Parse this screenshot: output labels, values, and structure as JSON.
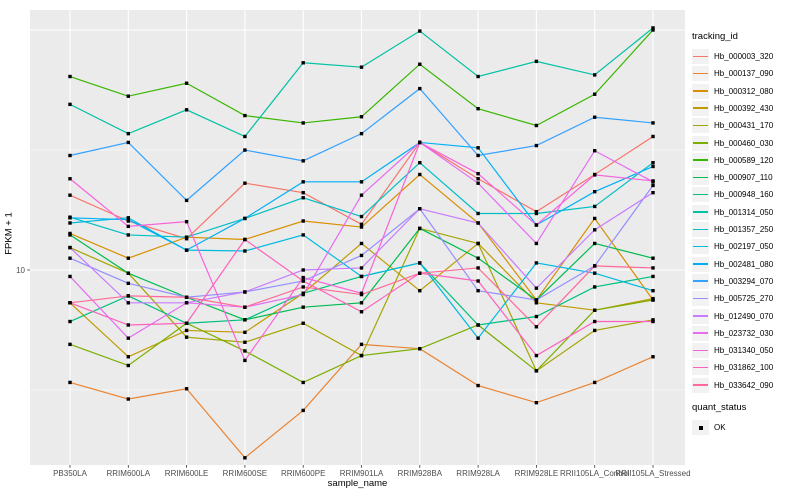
{
  "figure": {
    "y_axis": {
      "title": "FPKM + 1",
      "scale": "log10",
      "tick_labels": [
        "10"
      ]
    },
    "x_axis": {
      "title": "sample_name"
    },
    "legend": {
      "tracking_title": "tracking_id",
      "quant_title": "quant_status",
      "quant_items": [
        {
          "label": "OK",
          "marker": "black-square"
        }
      ]
    },
    "colors": {
      "panel_background": "#EBEBEB",
      "gridline": "#FFFFFF",
      "tick_mark": "#333333",
      "tick_label": "#4D4D4D",
      "point": "#000000"
    }
  },
  "chart_data": {
    "type": "line",
    "title": "",
    "xlabel": "sample_name",
    "ylabel": "FPKM + 1",
    "yscale": "log10",
    "ylim": [
      1.5,
      121
    ],
    "y_major_breaks": [
      10,
      100
    ],
    "y_minor_breaks": [
      3.162,
      31.62
    ],
    "grid": true,
    "legend_position": "right",
    "point_marker": "black-square",
    "x_categories": [
      "PB350LA",
      "RRIM600LA",
      "RRIM600LE",
      "RRIM600SE",
      "RRIM600PE",
      "RRIM901LA",
      "RRIM928BA",
      "RRIM928LA",
      "RRIM928LE",
      "RRII105LA_Control",
      "RRII105LA_Stressed"
    ],
    "series": [
      {
        "name": "Hb_000003_320",
        "color": "#F8766D",
        "values": [
          20.5,
          16,
          13.5,
          23,
          21,
          15.5,
          34,
          24,
          17.5,
          25,
          36
        ]
      },
      {
        "name": "Hb_000137_090",
        "color": "#EA8331",
        "values": [
          3.4,
          2.9,
          3.2,
          1.65,
          2.6,
          4.9,
          4.7,
          3.3,
          2.8,
          3.4,
          4.35
        ]
      },
      {
        "name": "Hb_000312_080",
        "color": "#D89000",
        "values": [
          14.2,
          11.2,
          13.7,
          13.4,
          16,
          15.1,
          25,
          15.7,
          7.5,
          16.4,
          7.5
        ]
      },
      {
        "name": "Hb_000392_430",
        "color": "#C09B00",
        "values": [
          7.3,
          4.35,
          5.6,
          5.5,
          8,
          12.9,
          8.2,
          12.9,
          7.3,
          6.8,
          7.6
        ]
      },
      {
        "name": "Hb_000431_170",
        "color": "#A3A500",
        "values": [
          12.4,
          9.7,
          5.25,
          5.0,
          6,
          4.4,
          14.9,
          12.9,
          3.8,
          5.6,
          6.2
        ]
      },
      {
        "name": "Hb_000460_030",
        "color": "#7CAE00",
        "values": [
          4.9,
          4.0,
          6.0,
          4.6,
          3.4,
          4.4,
          4.7,
          5.9,
          3.8,
          6.8,
          7.5
        ]
      },
      {
        "name": "Hb_000589_120",
        "color": "#39B600",
        "values": [
          64,
          53,
          60,
          44,
          41,
          43.5,
          72,
          47,
          40,
          54,
          100
        ]
      },
      {
        "name": "Hb_000907_110",
        "color": "#00BB4E",
        "values": [
          14,
          9.7,
          7.7,
          6.2,
          7,
          7.3,
          14.9,
          11.2,
          7.5,
          12.9,
          11.2
        ]
      },
      {
        "name": "Hb_000948_160",
        "color": "#00BF7D",
        "values": [
          6.1,
          7.8,
          6.0,
          6.2,
          8,
          9.4,
          10.7,
          5.9,
          6.4,
          8.5,
          9.4
        ]
      },
      {
        "name": "Hb_001314_050",
        "color": "#00C1A3",
        "values": [
          49,
          37,
          46.5,
          36,
          73,
          70,
          99,
          64,
          74,
          65,
          102
        ]
      },
      {
        "name": "Hb_001357_250",
        "color": "#00BFC4",
        "values": [
          16.6,
          14,
          13.7,
          16.4,
          20,
          16.7,
          28,
          17.2,
          17.2,
          18.4,
          28
        ]
      },
      {
        "name": "Hb_002197_050",
        "color": "#00BAE0",
        "values": [
          15.7,
          16.5,
          12.1,
          12,
          14,
          9.4,
          10.7,
          5.2,
          10.7,
          9.7,
          8.2
        ]
      },
      {
        "name": "Hb_002481_080",
        "color": "#00B0F6",
        "values": [
          16.5,
          16.2,
          12.1,
          16.4,
          23.3,
          23.3,
          34,
          32.3,
          15.4,
          21.2,
          27
        ]
      },
      {
        "name": "Hb_003294_070",
        "color": "#35A2FF",
        "values": [
          30,
          34,
          19.5,
          31.6,
          28.5,
          37,
          57,
          30,
          33,
          43.3,
          41
        ]
      },
      {
        "name": "Hb_005725_270",
        "color": "#9590FF",
        "values": [
          11.2,
          8.8,
          7.7,
          8.1,
          9,
          11.5,
          18,
          8.2,
          7.5,
          10.4,
          22.5
        ]
      },
      {
        "name": "Hb_012490_070",
        "color": "#C77CFF",
        "values": [
          12.4,
          7.3,
          7.3,
          8.1,
          10,
          10.2,
          18,
          15.7,
          8.4,
          14.7,
          21
        ]
      },
      {
        "name": "Hb_023732_030",
        "color": "#E76BF3",
        "values": [
          9.4,
          5.2,
          7.3,
          7.0,
          7.9,
          20.5,
          34,
          23,
          12.9,
          31.4,
          23.3
        ]
      },
      {
        "name": "Hb_031340_050",
        "color": "#FA62DB",
        "values": [
          24,
          15.2,
          15.9,
          4.2,
          9.3,
          8.0,
          34,
          25.2,
          15.4,
          24.9,
          23.5
        ]
      },
      {
        "name": "Hb_031862_100",
        "color": "#FF62BC",
        "values": [
          7.3,
          5.9,
          6.0,
          13.4,
          9,
          6.7,
          9.7,
          9.0,
          4.4,
          6.1,
          6.1
        ]
      },
      {
        "name": "Hb_033642_090",
        "color": "#FF6A98",
        "values": [
          7.3,
          7.8,
          7.7,
          7.0,
          8.5,
          7.9,
          9.7,
          10.2,
          5.8,
          10.4,
          10.2
        ]
      }
    ]
  }
}
